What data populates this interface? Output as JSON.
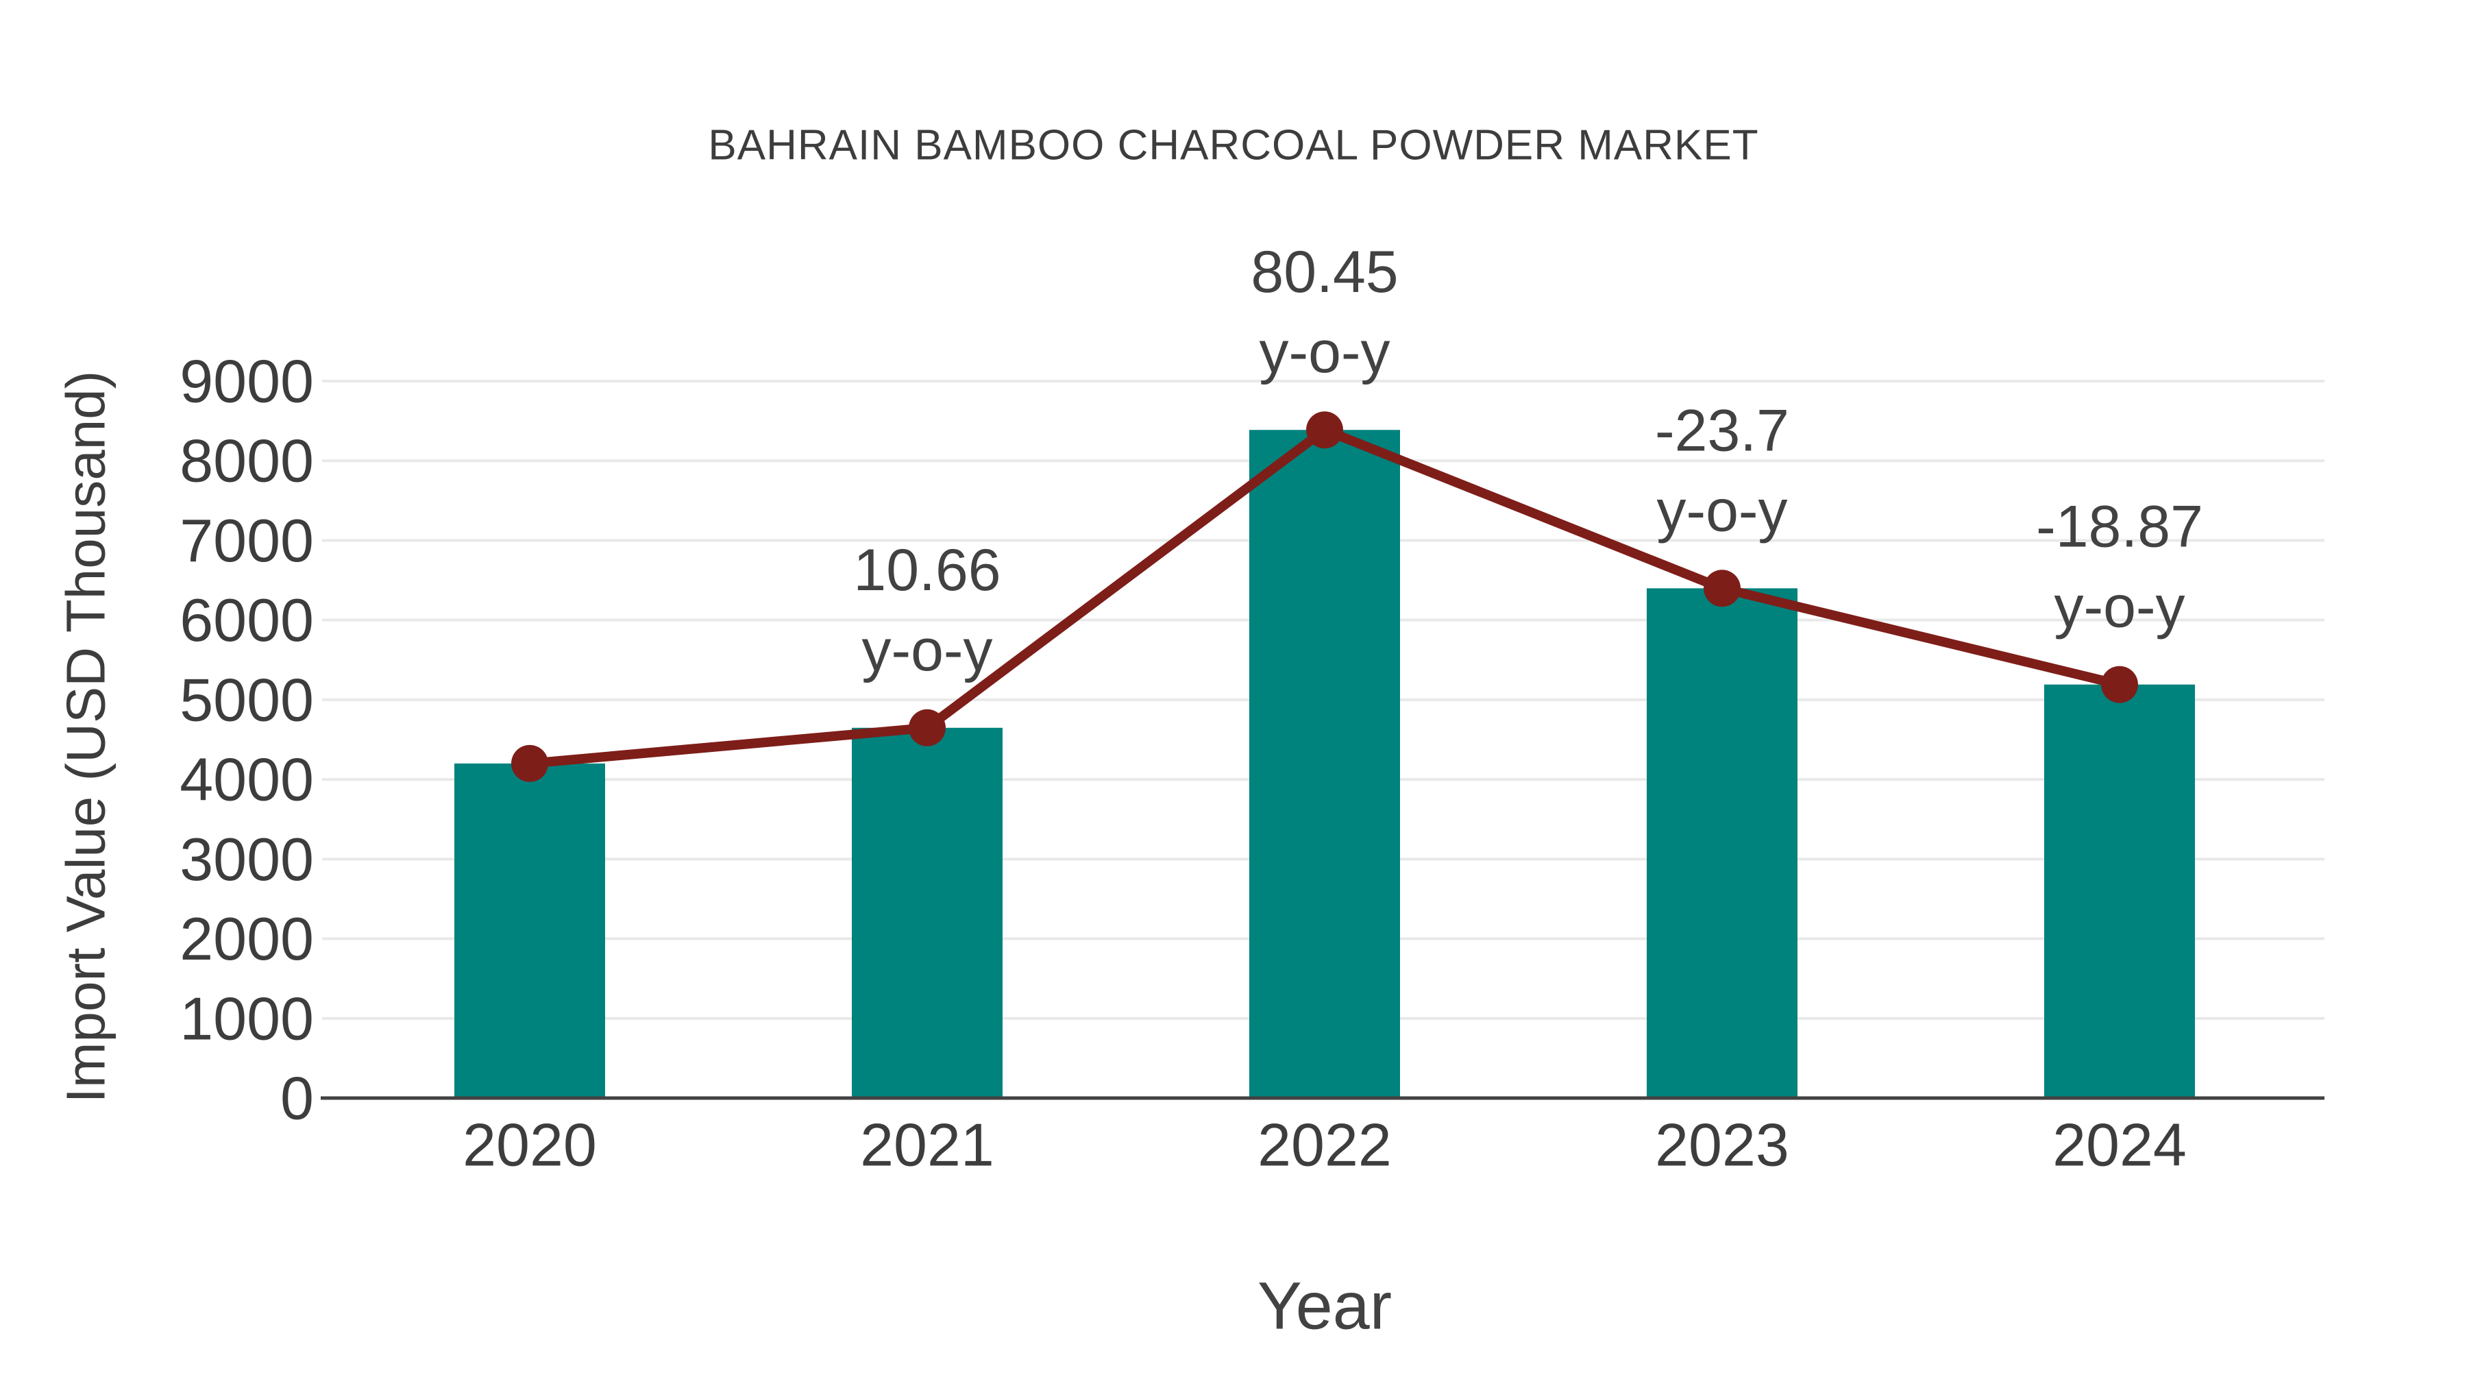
{
  "page": {
    "background": "#FFFFFF"
  },
  "chart_data": {
    "type": "bar",
    "title": "BAHRAIN BAMBOO CHARCOAL POWDER MARKET",
    "xlabel": "Year",
    "ylabel": "Import Value (USD Thousand)",
    "categories": [
      "2020",
      "2021",
      "2022",
      "2023",
      "2024"
    ],
    "series": [
      {
        "name": "Import Value bars",
        "type": "bar",
        "values": [
          4200,
          4648,
          8387,
          6399,
          5191
        ]
      },
      {
        "name": "Import Value trend line",
        "type": "line",
        "values": [
          4200,
          4648,
          8387,
          6399,
          5191
        ]
      }
    ],
    "annotations": [
      {
        "category": "2021",
        "value": "10.66",
        "suffix": "y-o-y"
      },
      {
        "category": "2022",
        "value": "80.45",
        "suffix": "y-o-y"
      },
      {
        "category": "2023",
        "value": "-23.7",
        "suffix": "y-o-y"
      },
      {
        "category": "2024",
        "value": "-18.87",
        "suffix": "y-o-y"
      }
    ],
    "ylim": [
      0,
      9000
    ],
    "yticks": [
      0,
      1000,
      2000,
      3000,
      4000,
      5000,
      6000,
      7000,
      8000,
      9000
    ],
    "grid": true,
    "legend": false,
    "colors": {
      "bar": "#00827D",
      "line": "#7E1E19",
      "marker": "#7E1E19",
      "grid": "#E9E9E9",
      "axis": "#424242",
      "text": "#3D3D3D",
      "annotation": "#424242"
    }
  }
}
